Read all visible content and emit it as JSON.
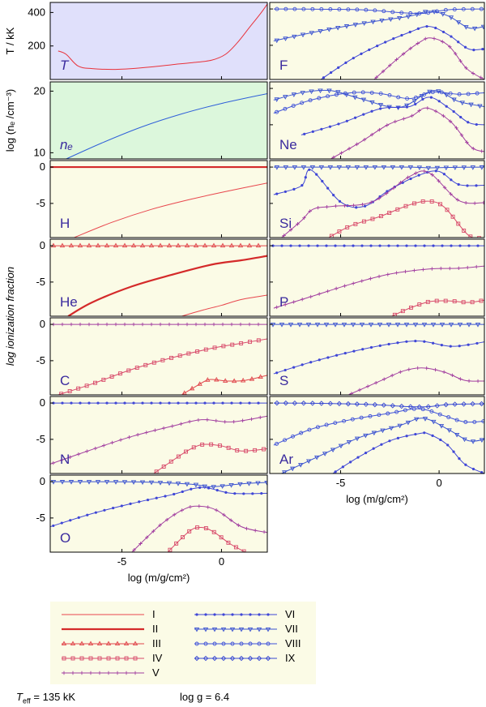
{
  "chart_data": {
    "type": "line",
    "xlabel": "log (m/g/cm²)",
    "xlim": [
      -8.6,
      2.3
    ],
    "xticks": [
      "-5",
      "0"
    ],
    "ylabel_ionization": "log ionization fraction",
    "panels": [
      {
        "id": "T",
        "label": "T",
        "bg": "#e0e0fb",
        "ylabel": "T / kK",
        "ylim": [
          0,
          460
        ],
        "yticks": [
          200,
          400
        ],
        "series": [
          {
            "name": "T",
            "color": "#e8323a",
            "x": [
              -8.2,
              -7.8,
              -7.2,
              -6.5,
              -5.5,
              -4.5,
              -3.5,
              -2.5,
              -1.5,
              -0.5,
              0.2,
              0.8,
              1.4,
              2.0,
              2.3
            ],
            "y": [
              170,
              150,
              80,
              65,
              60,
              65,
              75,
              88,
              100,
              115,
              150,
              220,
              310,
              400,
              450
            ]
          }
        ]
      },
      {
        "id": "ne",
        "label": "nₑ",
        "bg": "#dcf7dc",
        "ylabel": "log (nₑ /cm⁻³)",
        "ylim": [
          9,
          21.5
        ],
        "yticks": [
          10,
          20
        ],
        "series": [
          {
            "name": "ne",
            "color": "#2f5fd9",
            "x": [
              -8.0,
              -6.0,
              -4.0,
              -2.0,
              0.0,
              2.3
            ],
            "y": [
              8.7,
              11.6,
              14.2,
              16.3,
              18.0,
              19.6
            ]
          }
        ]
      },
      {
        "id": "H",
        "label": "H",
        "ylim": [
          -9.7,
          0.9
        ],
        "yticks": [
          0,
          -5
        ],
        "series": [
          {
            "name": "II",
            "x": [
              -8.6,
              2.3
            ],
            "y": [
              0,
              0
            ]
          },
          {
            "name": "I",
            "x": [
              -7.4,
              -5.5,
              -3.5,
              -1.5,
              0.5,
              2.3
            ],
            "y": [
              -9.7,
              -7.6,
              -5.8,
              -4.4,
              -3.2,
              -2.2
            ]
          }
        ]
      },
      {
        "id": "He",
        "label": "He",
        "ylim": [
          -9.7,
          0.9
        ],
        "yticks": [
          0,
          -5
        ],
        "series": [
          {
            "name": "III",
            "x": [
              -8.6,
              2.3
            ],
            "y": [
              0,
              0
            ]
          },
          {
            "name": "II",
            "x": [
              -7.7,
              -6.5,
              -4.5,
              -2.5,
              -0.5,
              1.0,
              2.3
            ],
            "y": [
              -9.7,
              -7.8,
              -5.6,
              -4.0,
              -2.6,
              -2.0,
              -1.4
            ]
          },
          {
            "name": "I",
            "x": [
              -2.0,
              -1.0,
              0.0,
              1.0,
              2.3
            ],
            "y": [
              -9.7,
              -8.9,
              -8.2,
              -7.4,
              -6.8
            ]
          }
        ]
      },
      {
        "id": "C",
        "label": "C",
        "ylim": [
          -9.7,
          0.9
        ],
        "yticks": [
          0,
          -5
        ],
        "series": [
          {
            "name": "V",
            "x": [
              -8.6,
              2.3
            ],
            "y": [
              0,
              0
            ]
          },
          {
            "name": "IV",
            "x": [
              -8.2,
              -6.5,
              -4.5,
              -2.5,
              -0.5,
              1.0,
              2.3
            ],
            "y": [
              -9.7,
              -8.2,
              -6.2,
              -4.6,
              -3.3,
              -2.6,
              -2.0
            ]
          },
          {
            "name": "III",
            "x": [
              -2.0,
              -1.2,
              -0.6,
              0.3,
              1.2,
              2.3
            ],
            "y": [
              -9.7,
              -8.4,
              -7.6,
              -7.8,
              -7.7,
              -7.0
            ]
          }
        ]
      },
      {
        "id": "N",
        "label": "N",
        "ylim": [
          -9.7,
          0.9
        ],
        "yticks": [
          0,
          -5
        ],
        "series": [
          {
            "name": "VI",
            "x": [
              -8.6,
              2.3
            ],
            "y": [
              0,
              0
            ]
          },
          {
            "name": "V",
            "x": [
              -8.6,
              -6.5,
              -4.5,
              -2.5,
              -1.0,
              0.5,
              2.3
            ],
            "y": [
              -8.4,
              -6.4,
              -4.6,
              -3.2,
              -2.3,
              -2.6,
              -1.8
            ]
          },
          {
            "name": "IV",
            "x": [
              -3.4,
              -2.5,
              -1.6,
              -0.9,
              0.0,
              1.0,
              2.3
            ],
            "y": [
              -9.7,
              -8.0,
              -6.4,
              -5.7,
              -5.9,
              -6.6,
              -6.3
            ]
          }
        ]
      },
      {
        "id": "O",
        "label": "O",
        "ylim": [
          -9.7,
          0.9
        ],
        "yticks": [
          0,
          -5
        ],
        "series": [
          {
            "name": "VII",
            "x": [
              -8.6,
              -4.0,
              -1.5,
              -0.5,
              1.0,
              2.3
            ],
            "y": [
              0,
              -0.05,
              -0.35,
              -0.7,
              -0.3,
              -0.1
            ]
          },
          {
            "name": "VI",
            "x": [
              -8.6,
              -6.5,
              -4.5,
              -2.5,
              -1.0,
              0.5,
              2.3
            ],
            "y": [
              -6.2,
              -4.4,
              -3.0,
              -1.8,
              -0.8,
              -1.6,
              -1.6
            ]
          },
          {
            "name": "V",
            "x": [
              -4.5,
              -3.0,
              -1.8,
              -1.0,
              -0.2,
              1.0,
              2.3
            ],
            "y": [
              -9.7,
              -5.8,
              -3.7,
              -3.4,
              -4.0,
              -6.2,
              -7.0
            ]
          },
          {
            "name": "IV",
            "x": [
              -2.7,
              -1.6,
              -1.0,
              -0.4,
              0.4,
              1.2
            ],
            "y": [
              -9.7,
              -6.8,
              -6.3,
              -6.9,
              -8.5,
              -9.7
            ]
          }
        ]
      },
      {
        "id": "F",
        "label": "F",
        "ylim": [
          -9.7,
          0.9
        ],
        "yticks": [],
        "series": [
          {
            "name": "VIII",
            "x": [
              -8.4,
              -4.0,
              -2.0,
              -0.8,
              0.5,
              2.3
            ],
            "y": [
              0,
              -0.1,
              -0.5,
              -0.6,
              -0.1,
              0
            ]
          },
          {
            "name": "VII",
            "x": [
              -8.4,
              -6.0,
              -3.5,
              -1.5,
              -0.5,
              0.5,
              1.5,
              2.3
            ],
            "y": [
              -4.4,
              -3.0,
              -1.8,
              -1.0,
              -0.3,
              -1.0,
              -2.6,
              -2.4
            ]
          },
          {
            "name": "VI",
            "x": [
              -6.0,
              -4.5,
              -3.0,
              -1.5,
              -0.5,
              0.5,
              1.5,
              2.3
            ],
            "y": [
              -9.7,
              -7.0,
              -4.9,
              -3.2,
              -2.4,
              -3.6,
              -5.5,
              -5.5
            ]
          },
          {
            "name": "V",
            "x": [
              -3.3,
              -2.0,
              -1.0,
              -0.4,
              0.5,
              1.4,
              2.3
            ],
            "y": [
              -9.7,
              -6.6,
              -4.6,
              -4.0,
              -5.1,
              -8.2,
              -9.7
            ]
          }
        ]
      },
      {
        "id": "Ne",
        "label": "Ne",
        "ylim": [
          -9.7,
          0.9
        ],
        "yticks": [],
        "series": [
          {
            "name": "VIII",
            "x": [
              -8.4,
              -6.5,
              -4.5,
              -3.0,
              -1.5,
              -0.3,
              1.0,
              2.3
            ],
            "y": [
              -3.4,
              -1.6,
              -0.6,
              -0.7,
              -1.4,
              -0.5,
              -0.8,
              -0.6
            ]
          },
          {
            "name": "VII",
            "x": [
              -8.4,
              -7.0,
              -5.5,
              -4.0,
              -2.0,
              -0.3,
              1.0,
              2.3
            ],
            "y": [
              -1.6,
              -0.6,
              -0.3,
              -1.4,
              -2.6,
              -0.3,
              -1.8,
              -2.5
            ]
          },
          {
            "name": "VI",
            "x": [
              -7.0,
              -5.0,
              -3.0,
              -1.5,
              -0.5,
              0.5,
              1.5,
              2.3
            ],
            "y": [
              -6.4,
              -4.8,
              -2.8,
              -2.5,
              -1.2,
              -2.7,
              -4.7,
              -5.0
            ]
          },
          {
            "name": "V",
            "x": [
              -5.5,
              -4.0,
              -2.6,
              -1.4,
              -0.6,
              0.6,
              1.6,
              2.3
            ],
            "y": [
              -9.7,
              -7.4,
              -5.0,
              -3.8,
              -2.7,
              -4.6,
              -8.0,
              -8.7
            ]
          }
        ]
      },
      {
        "id": "Si",
        "label": "Si",
        "ylim": [
          -9.7,
          0.9
        ],
        "yticks": [],
        "series": [
          {
            "name": "VII",
            "x": [
              -8.4,
              -6.2,
              -4.0,
              -1.5,
              -0.5,
              0.5,
              2.3
            ],
            "y": [
              0,
              0,
              0,
              0,
              -0.1,
              -0.05,
              0
            ]
          },
          {
            "name": "VI",
            "x": [
              -8.4,
              -7.0,
              -6.5,
              -5.0,
              -3.8,
              -2.5,
              -1.0,
              0.0,
              1.0,
              2.3
            ],
            "y": [
              -3.8,
              -2.6,
              -0.4,
              -4.8,
              -5.4,
              -3.1,
              -1.1,
              -0.6,
              -2.4,
              -2.5
            ]
          },
          {
            "name": "V",
            "x": [
              -8.0,
              -7.0,
              -6.4,
              -5.4,
              -3.4,
              -1.5,
              -0.5,
              1.0,
              2.3
            ],
            "y": [
              -9.7,
              -7.4,
              -5.8,
              -5.4,
              -4.8,
              -1.3,
              -0.8,
              -4.6,
              -4.9
            ]
          },
          {
            "name": "IV",
            "x": [
              -5.6,
              -4.5,
              -3.0,
              -1.5,
              -0.5,
              0.3,
              1.5,
              2.3
            ],
            "y": [
              -9.7,
              -8.1,
              -6.8,
              -5.2,
              -4.7,
              -5.6,
              -9.4,
              -9.7
            ]
          }
        ]
      },
      {
        "id": "P",
        "label": "P",
        "ylim": [
          -9.7,
          0.9
        ],
        "yticks": [],
        "series": [
          {
            "name": "VI",
            "x": [
              -8.6,
              2.3
            ],
            "y": [
              0,
              0
            ]
          },
          {
            "name": "V",
            "x": [
              -8.4,
              -6.5,
              -4.5,
              -2.5,
              -0.5,
              1.0,
              2.3
            ],
            "y": [
              -8.6,
              -7.0,
              -5.3,
              -3.9,
              -3.2,
              -3.1,
              -2.8
            ]
          },
          {
            "name": "IV",
            "x": [
              -2.4,
              -1.5,
              -0.5,
              0.5,
              1.5,
              2.3
            ],
            "y": [
              -9.7,
              -8.6,
              -7.7,
              -7.6,
              -7.8,
              -7.5
            ]
          }
        ]
      },
      {
        "id": "S",
        "label": "S",
        "ylim": [
          -9.7,
          0.9
        ],
        "yticks": [],
        "series": [
          {
            "name": "VII",
            "x": [
              -8.6,
              2.3
            ],
            "y": [
              0,
              0
            ]
          },
          {
            "name": "VI",
            "x": [
              -8.4,
              -6.5,
              -4.5,
              -2.5,
              -1.0,
              0.5,
              1.5,
              2.3
            ],
            "y": [
              -6.8,
              -5.2,
              -3.8,
              -2.7,
              -2.3,
              -3.0,
              -2.8,
              -2.4
            ]
          },
          {
            "name": "V",
            "x": [
              -4.6,
              -3.0,
              -1.8,
              -0.8,
              0.3,
              1.3,
              2.3
            ],
            "y": [
              -9.7,
              -7.8,
              -6.4,
              -6.0,
              -6.6,
              -7.7,
              -7.8
            ]
          }
        ]
      },
      {
        "id": "Ar",
        "label": "Ar",
        "ylim": [
          -9.7,
          0.9
        ],
        "yticks": [],
        "series": [
          {
            "name": "IX",
            "x": [
              -8.4,
              -6.0,
              -3.5,
              -1.5,
              -0.5,
              0.5,
              2.3
            ],
            "y": [
              0,
              -0.05,
              -0.2,
              -0.5,
              -0.5,
              -0.2,
              -0.1
            ]
          },
          {
            "name": "VIII",
            "x": [
              -8.4,
              -6.5,
              -4.5,
              -2.5,
              -1.0,
              0.3,
              1.3,
              2.3
            ],
            "y": [
              -5.8,
              -3.6,
              -2.3,
              -1.4,
              -0.8,
              -1.8,
              -2.6,
              -2.5
            ]
          },
          {
            "name": "VII",
            "x": [
              -8.0,
              -6.0,
              -4.0,
              -2.0,
              -0.8,
              0.5,
              1.5,
              2.3
            ],
            "y": [
              -9.7,
              -7.2,
              -4.7,
              -3.1,
              -2.1,
              -3.7,
              -5.2,
              -5.0
            ]
          },
          {
            "name": "VI",
            "x": [
              -5.4,
              -4.0,
              -2.5,
              -1.0,
              -0.5,
              0.4,
              1.3,
              2.3
            ],
            "y": [
              -9.7,
              -7.3,
              -5.2,
              -4.2,
              -4.3,
              -5.7,
              -8.4,
              -9.7
            ]
          }
        ]
      }
    ],
    "legend": {
      "entries": [
        "I",
        "II",
        "III",
        "IV",
        "V",
        "VI",
        "VII",
        "VIII",
        "IX"
      ],
      "styles": {
        "I": {
          "color": "#e8464d",
          "marker": "none",
          "width": 1
        },
        "II": {
          "color": "#d42a2a",
          "marker": "none",
          "width": 2.2
        },
        "III": {
          "color": "#e0454a",
          "marker": "triangle",
          "width": 1
        },
        "IV": {
          "color": "#d84a6a",
          "marker": "square",
          "width": 1
        },
        "V": {
          "color": "#a23fa0",
          "marker": "plus",
          "width": 1
        },
        "VI": {
          "color": "#3f46d6",
          "marker": "dot",
          "width": 1
        },
        "VII": {
          "color": "#3a52d0",
          "marker": "tridown",
          "width": 1
        },
        "VIII": {
          "color": "#3f52d8",
          "marker": "circle",
          "width": 1
        },
        "IX": {
          "color": "#3a4ad2",
          "marker": "diamond",
          "width": 1
        }
      }
    },
    "ionization_bg": "#fbfbe6"
  },
  "footer": {
    "teff_symbol": "T",
    "teff_sub": "eff",
    "teff_value": " = 135 kK",
    "logg": "log g = 6.4"
  }
}
